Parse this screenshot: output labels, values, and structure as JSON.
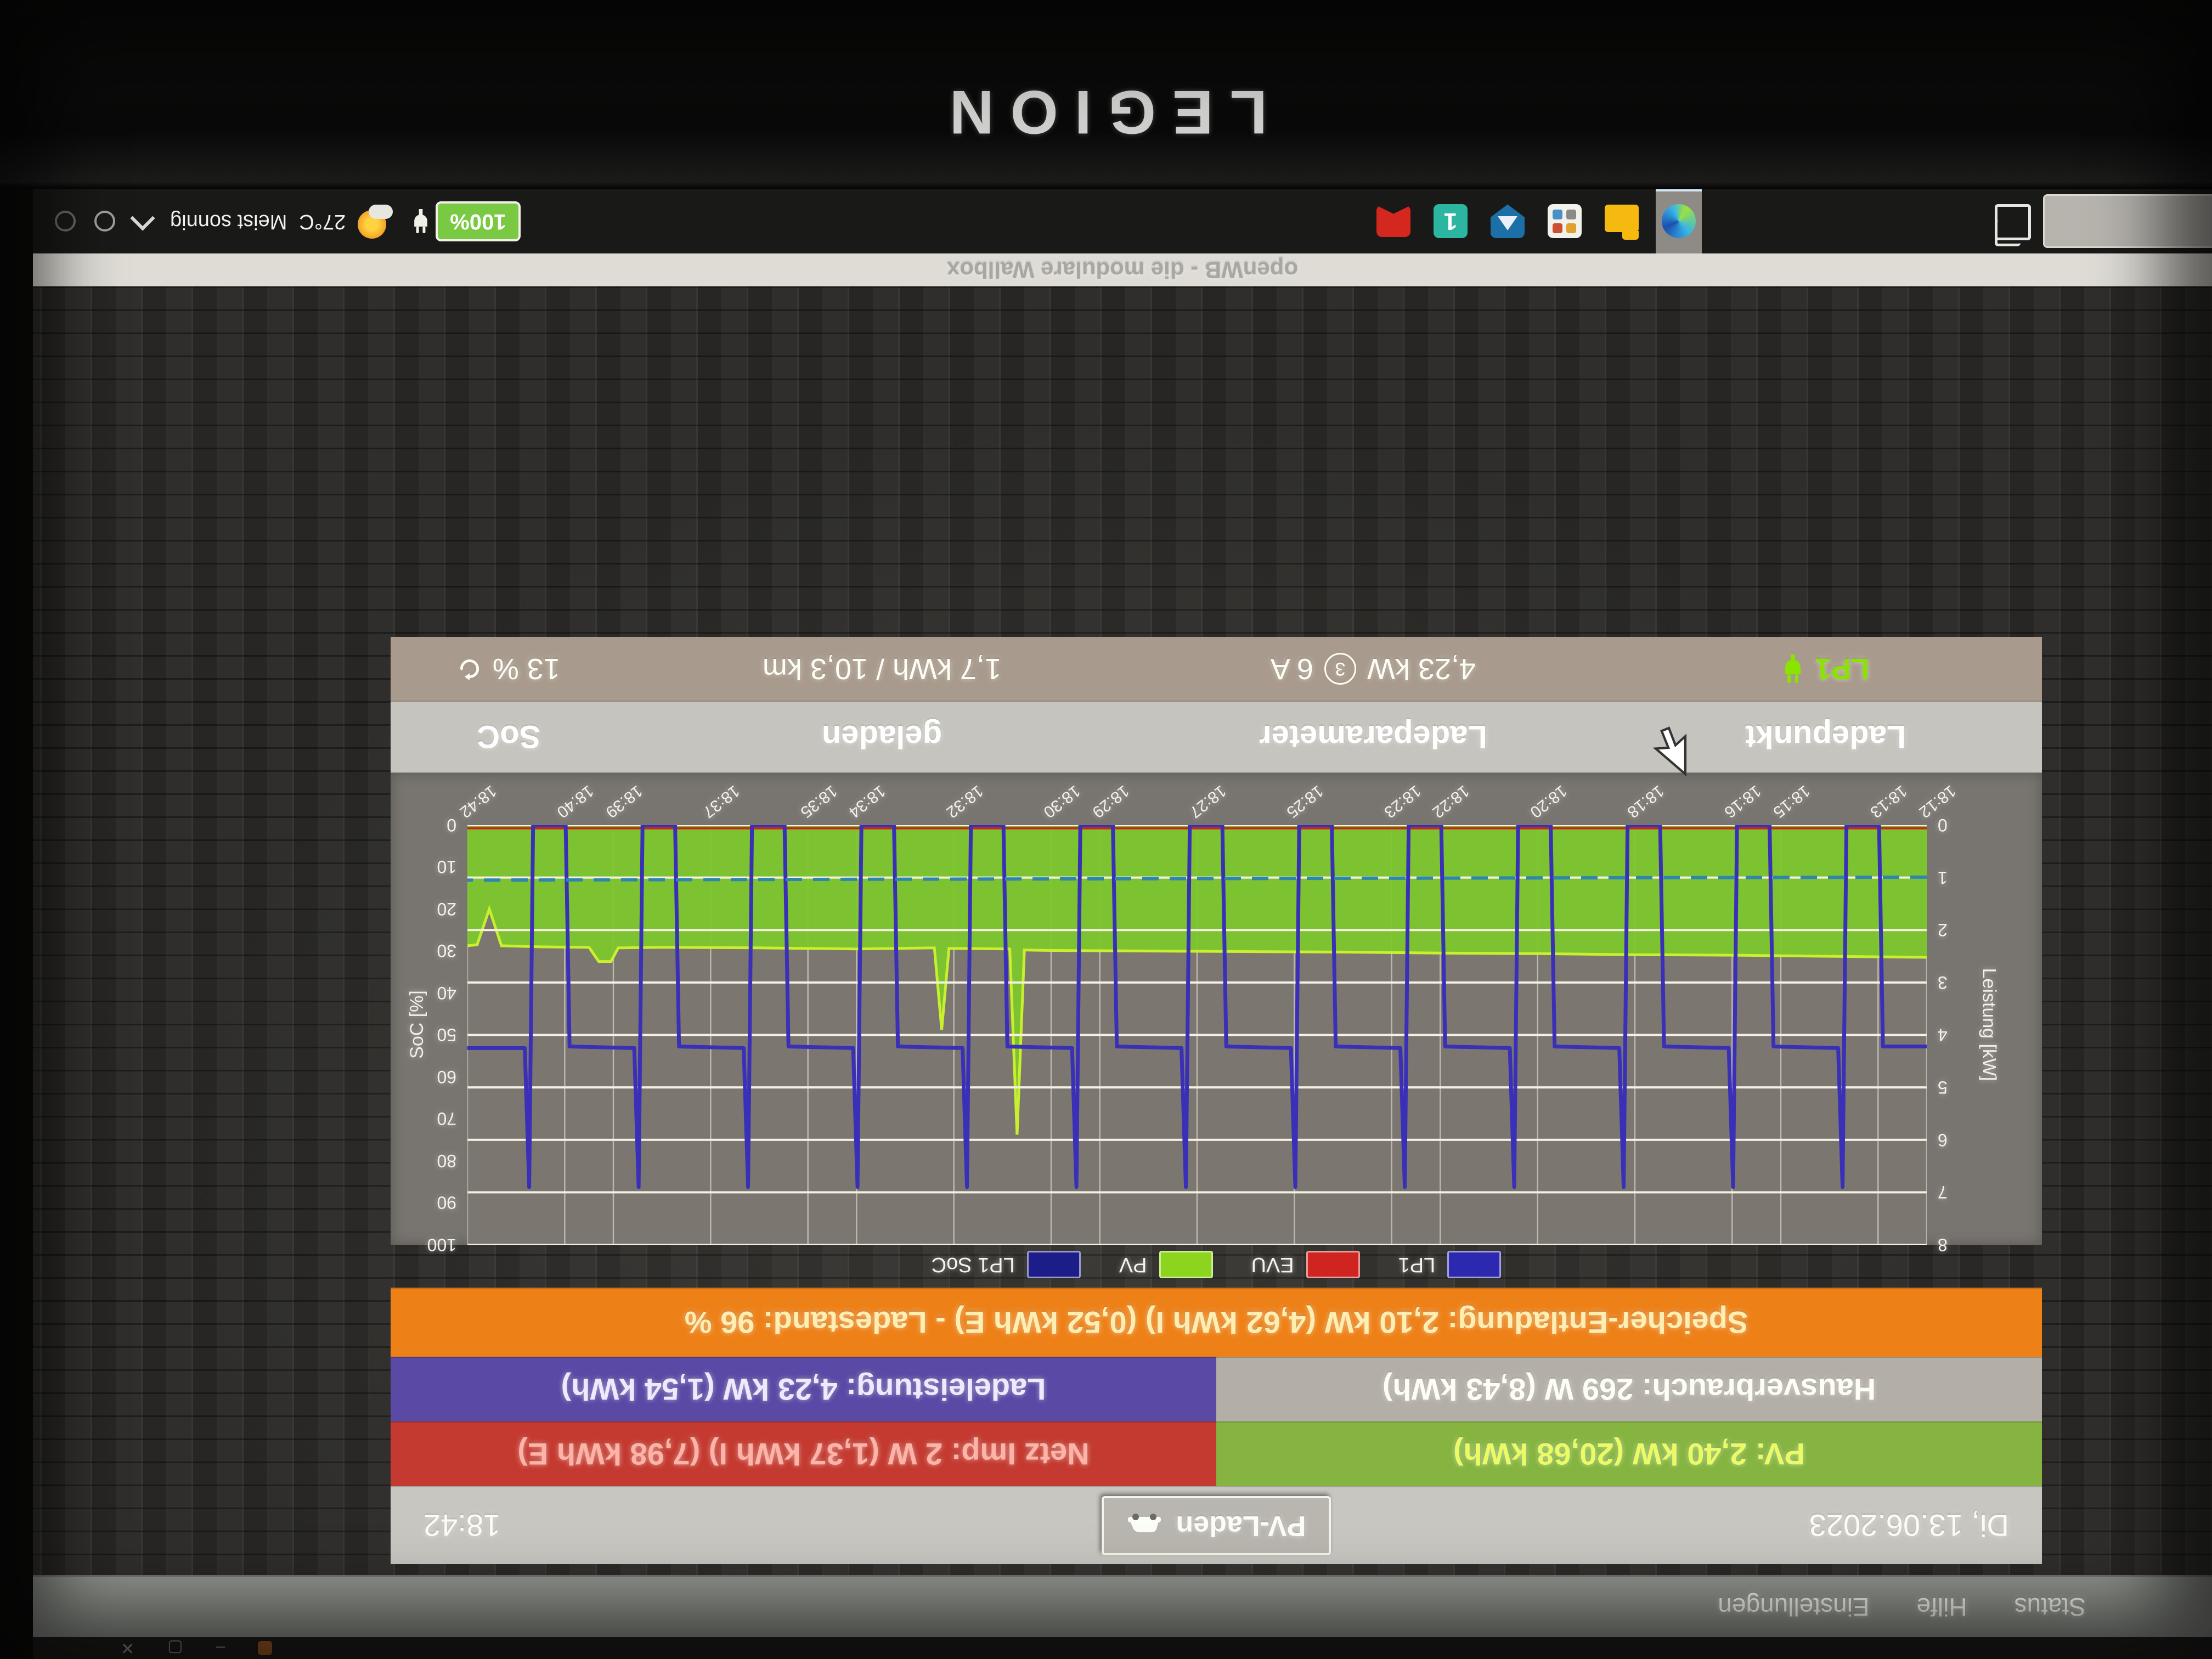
{
  "laptop": {
    "brand": "LEGION"
  },
  "browser": {
    "window_controls": [
      "minimize",
      "maximize",
      "close"
    ]
  },
  "navbar": {
    "items": [
      "Status",
      "Hilfe",
      "Einstellungen"
    ]
  },
  "status": {
    "date": "Di, 13.06.2023",
    "time": "18:42",
    "mode_button": "PV-Laden",
    "bars": {
      "pv": "PV: 2,40 kW (20,68 kWh)",
      "netz": "Netz Imp: 2 W (1,37 kWh I) (7,98 kWh E)",
      "hausverbrauch": "Hausverbrauch: 269 W (8,43 kWh)",
      "ladeleistung": "Ladeleistung: 4,23 kW (1,54 kWh)",
      "speicher": "Speicher-Entladung: 2,10 kW (4,62 kWh I) (0,52 kWh E) - Ladestand: 96 %"
    },
    "table": {
      "headers": [
        "Ladepunkt",
        "Ladeparameter",
        "geladen",
        "SoC"
      ],
      "row": {
        "name": "LP1",
        "power": "4,23 kW",
        "phases": "3",
        "current": "6 A",
        "charged": "1,7 kWh / 10,3 km",
        "soc": "13 %"
      }
    }
  },
  "footer": {
    "text": "openWB - die modulare Wallbox"
  },
  "taskbar": {
    "app_icons": [
      "edge-browser",
      "file-explorer",
      "mail-app",
      "defender-shield",
      "onenote-app",
      "red-bookmark-app"
    ],
    "tray": {
      "battery": "100%",
      "weather_temp": "27°C",
      "weather_desc": "Meist sonnig"
    }
  },
  "chart_data": {
    "type": "line",
    "title": "",
    "xlabel": "",
    "ylabel_left": "Leistung [kW]",
    "ylabel_right": "SoC [%]",
    "x_range_minutes": [
      0,
      30
    ],
    "x_start_time": "18:12",
    "left_axis": {
      "min": 0,
      "max": 8,
      "ticks": [
        0,
        1,
        2,
        3,
        4,
        5,
        6,
        7,
        8
      ]
    },
    "right_axis": {
      "min": 0,
      "max": 100,
      "ticks": [
        0,
        10,
        20,
        30,
        40,
        50,
        60,
        70,
        80,
        90,
        100
      ]
    },
    "x_ticks": {
      "labels": [
        "18:12",
        "18:13",
        "18:15",
        "18:16",
        "18:18",
        "18:20",
        "18:22",
        "18:23",
        "18:25",
        "18:27",
        "18:29",
        "18:30",
        "18:32",
        "18:34",
        "18:35",
        "18:37",
        "18:39",
        "18:40",
        "18:42"
      ],
      "t": [
        0,
        1,
        3,
        4,
        6,
        8,
        10,
        11,
        13,
        15,
        17,
        18,
        20,
        22,
        23,
        25,
        27,
        28,
        30
      ]
    },
    "legend": [
      {
        "label": "LP1",
        "color": "#2d28b0"
      },
      {
        "label": "EVU",
        "color": "#d02420"
      },
      {
        "label": "PV",
        "color": "#8cd41e"
      },
      {
        "label": "LP1 SoC",
        "color": "#1d1d8a"
      }
    ],
    "series": {
      "pv": {
        "name": "PV",
        "unit": "kW",
        "color": "#7dc62c",
        "edge_color": "#c9ef2e",
        "style": "area",
        "points": [
          [
            0,
            2.52
          ],
          [
            2,
            2.5
          ],
          [
            4,
            2.48
          ],
          [
            6,
            2.47
          ],
          [
            8,
            2.45
          ],
          [
            10,
            2.44
          ],
          [
            12,
            2.42
          ],
          [
            14,
            2.41
          ],
          [
            16,
            2.4
          ],
          [
            18,
            2.39
          ],
          [
            18.55,
            2.38
          ],
          [
            18.7,
            5.9
          ],
          [
            18.85,
            2.36
          ],
          [
            20.1,
            2.35
          ],
          [
            20.25,
            3.9
          ],
          [
            20.4,
            2.34
          ],
          [
            22,
            2.36
          ],
          [
            24,
            2.34
          ],
          [
            26,
            2.33
          ],
          [
            26.9,
            2.34
          ],
          [
            27.05,
            2.6
          ],
          [
            27.3,
            2.6
          ],
          [
            27.5,
            2.33
          ],
          [
            28.5,
            2.32
          ],
          [
            29.3,
            2.3
          ],
          [
            29.55,
            1.6
          ],
          [
            29.8,
            2.28
          ],
          [
            30,
            2.3
          ]
        ]
      },
      "lp1": {
        "name": "LP1",
        "unit": "kW",
        "color": "#3a30b8",
        "style": "line",
        "points": [
          [
            0,
            4.22
          ],
          [
            0.9,
            4.22
          ],
          [
            0.98,
            0
          ],
          [
            1.65,
            0
          ],
          [
            1.73,
            6.9
          ],
          [
            1.82,
            4.25
          ],
          [
            3.15,
            4.22
          ],
          [
            3.23,
            0
          ],
          [
            3.9,
            0
          ],
          [
            3.98,
            6.9
          ],
          [
            4.07,
            4.25
          ],
          [
            5.4,
            4.22
          ],
          [
            5.48,
            0
          ],
          [
            6.15,
            0
          ],
          [
            6.23,
            6.9
          ],
          [
            6.32,
            4.25
          ],
          [
            7.65,
            4.22
          ],
          [
            7.73,
            0
          ],
          [
            8.4,
            0
          ],
          [
            8.48,
            6.9
          ],
          [
            8.57,
            4.25
          ],
          [
            9.9,
            4.22
          ],
          [
            9.98,
            0
          ],
          [
            10.65,
            0
          ],
          [
            10.73,
            6.9
          ],
          [
            10.82,
            4.25
          ],
          [
            12.15,
            4.22
          ],
          [
            12.23,
            0
          ],
          [
            12.9,
            0
          ],
          [
            12.98,
            6.9
          ],
          [
            13.07,
            4.25
          ],
          [
            14.4,
            4.22
          ],
          [
            14.48,
            0
          ],
          [
            15.15,
            0
          ],
          [
            15.23,
            6.9
          ],
          [
            15.32,
            4.25
          ],
          [
            16.65,
            4.22
          ],
          [
            16.73,
            0
          ],
          [
            17.4,
            0
          ],
          [
            17.48,
            6.9
          ],
          [
            17.57,
            4.25
          ],
          [
            18.9,
            4.22
          ],
          [
            18.98,
            0
          ],
          [
            19.65,
            0
          ],
          [
            19.73,
            6.9
          ],
          [
            19.82,
            4.25
          ],
          [
            21.15,
            4.22
          ],
          [
            21.23,
            0
          ],
          [
            21.9,
            0
          ],
          [
            21.98,
            6.9
          ],
          [
            22.07,
            4.25
          ],
          [
            23.4,
            4.22
          ],
          [
            23.48,
            0
          ],
          [
            24.15,
            0
          ],
          [
            24.23,
            6.9
          ],
          [
            24.32,
            4.25
          ],
          [
            25.65,
            4.22
          ],
          [
            25.73,
            0
          ],
          [
            26.4,
            0
          ],
          [
            26.48,
            6.9
          ],
          [
            26.57,
            4.25
          ],
          [
            27.9,
            4.22
          ],
          [
            27.98,
            0
          ],
          [
            28.65,
            0
          ],
          [
            28.73,
            6.9
          ],
          [
            28.82,
            4.25
          ],
          [
            30,
            4.25
          ]
        ]
      },
      "evu": {
        "name": "EVU",
        "unit": "kW",
        "color": "#cc2420",
        "style": "line",
        "points": [
          [
            0,
            0.06
          ],
          [
            30,
            0.06
          ]
        ]
      },
      "lp1_soc": {
        "name": "LP1 SoC",
        "unit": "%",
        "color": "#2e86b0",
        "style": "dashed",
        "points": [
          [
            0,
            12.4
          ],
          [
            30,
            13.1
          ]
        ]
      }
    }
  }
}
